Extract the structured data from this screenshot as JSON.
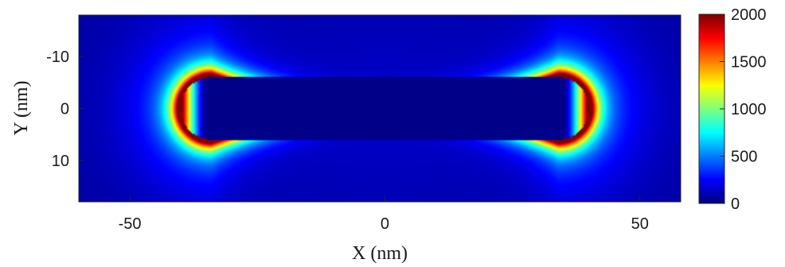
{
  "chart_data": {
    "type": "heatmap",
    "title": "",
    "xlabel": "X (nm)",
    "ylabel": "Y (nm)",
    "xlim": [
      -60,
      58
    ],
    "ylim": [
      -18,
      18
    ],
    "y_reversed": true,
    "xticks": [
      -50,
      0,
      50
    ],
    "yticks": [
      -10,
      0,
      10
    ],
    "colormap": "jet",
    "colorbar": {
      "min": 0,
      "max": 2000,
      "ticks": [
        0,
        500,
        1000,
        1500,
        2000
      ],
      "placement": "right"
    },
    "grid": false,
    "field": {
      "object": "rod",
      "rod_length_nm": 80,
      "rod_diameter_nm": 12,
      "interior_value": 20,
      "tip_peak_value": 2000,
      "background_value": 30
    }
  }
}
